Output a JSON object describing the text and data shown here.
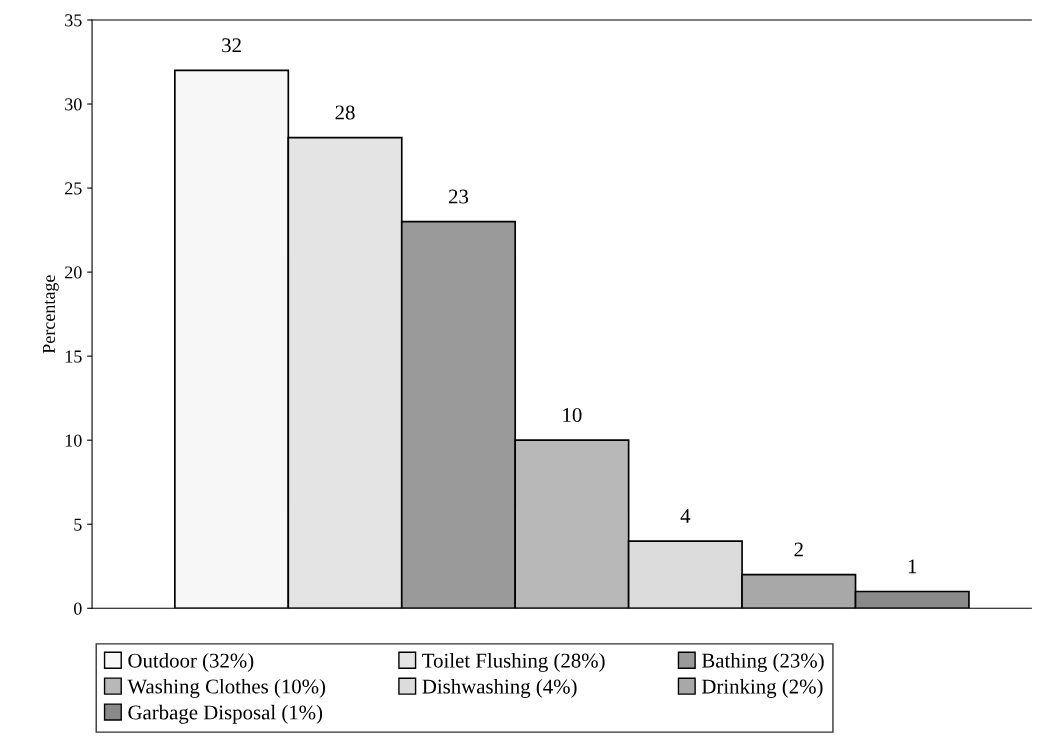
{
  "chart_data": {
    "type": "bar",
    "ylabel": "Percentage",
    "categories": [
      null,
      null,
      null,
      null,
      null,
      null,
      null
    ],
    "series": [
      {
        "name": "Outdoor (32%)",
        "color": "#f7f7f7",
        "values": [
          32,
          null,
          null,
          null,
          null,
          null,
          null
        ]
      },
      {
        "name": "Toilet Flushing (28%)",
        "color": "#e4e4e4",
        "values": [
          null,
          28,
          null,
          null,
          null,
          null,
          null
        ]
      },
      {
        "name": "Bathing (23%)",
        "color": "#9a9a9a",
        "values": [
          null,
          null,
          23,
          null,
          null,
          null,
          null
        ]
      },
      {
        "name": "Washing Clothes (10%)",
        "color": "#b8b8b8",
        "values": [
          null,
          null,
          null,
          10,
          null,
          null,
          null
        ]
      },
      {
        "name": "Dishwashing (4%)",
        "color": "#dcdcdc",
        "values": [
          null,
          null,
          null,
          null,
          4,
          null,
          null
        ]
      },
      {
        "name": "Drinking (2%)",
        "color": "#a8a8a8",
        "values": [
          null,
          null,
          null,
          null,
          null,
          2,
          null
        ]
      },
      {
        "name": "Garbage Disposal (1%)",
        "color": "#8a8a8a",
        "values": [
          null,
          null,
          null,
          null,
          null,
          null,
          1
        ]
      }
    ],
    "ylim": [
      0,
      35
    ],
    "yticks": [
      0,
      5,
      10,
      15,
      20,
      25,
      30,
      35
    ],
    "grid": false,
    "stacked": true,
    "legend": "bottom",
    "data_labels": true
  }
}
